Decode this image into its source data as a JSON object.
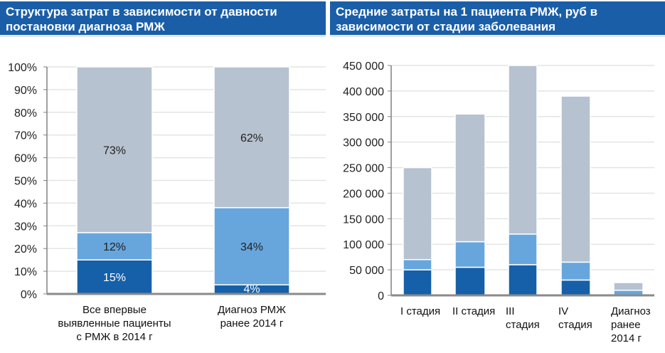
{
  "colors": {
    "header": "#1a5ea8",
    "dark": "#1560a8",
    "mid": "#67a6dc",
    "light": "#b7c2d0",
    "grid": "#e4e4e4",
    "axis": "#808080"
  },
  "chart_data": [
    {
      "type": "bar",
      "stacked": true,
      "title": "Структура затрат в зависимости от давности постановки диагноза РМЖ",
      "categories": [
        [
          "Все впервые",
          "выявленные пациенты",
          "с РМЖ в 2014 г"
        ],
        [
          "Диагноз РМЖ",
          "ранее 2014 г"
        ]
      ],
      "series": [
        {
          "key": "bottom",
          "values": [
            15,
            4
          ],
          "labels": [
            "15%",
            "4%"
          ]
        },
        {
          "key": "middle",
          "values": [
            12,
            34
          ],
          "labels": [
            "12%",
            "34%"
          ]
        },
        {
          "key": "top",
          "values": [
            73,
            62
          ],
          "labels": [
            "73%",
            "62%"
          ]
        }
      ],
      "yticks": [
        "0%",
        "10%",
        "20%",
        "30%",
        "40%",
        "50%",
        "60%",
        "70%",
        "80%",
        "90%",
        "100%"
      ],
      "ylim": [
        0,
        100
      ],
      "grid": true,
      "legend": "none"
    },
    {
      "type": "bar",
      "stacked": true,
      "title": "Средние затраты на 1 пациента РМЖ, руб в зависимости от стадии заболевания",
      "categories": [
        [
          "I стадия"
        ],
        [
          "II стадия"
        ],
        [
          "III",
          "стадия"
        ],
        [
          "IV",
          "стадия"
        ],
        [
          "Диагноз",
          "ранее",
          "2014 г"
        ]
      ],
      "series": [
        {
          "key": "bottom",
          "values": [
            50000,
            55000,
            60000,
            30000,
            0
          ]
        },
        {
          "key": "middle",
          "values": [
            20000,
            50000,
            60000,
            35000,
            10000
          ]
        },
        {
          "key": "top",
          "values": [
            180000,
            250000,
            330000,
            325000,
            15000
          ]
        }
      ],
      "yticks": [
        "0",
        "50 000",
        "100 000",
        "150 000",
        "200 000",
        "250 000",
        "300 000",
        "350 000",
        "400 000",
        "450 000"
      ],
      "ylim": [
        0,
        450000
      ],
      "grid": true,
      "legend": "none"
    }
  ]
}
